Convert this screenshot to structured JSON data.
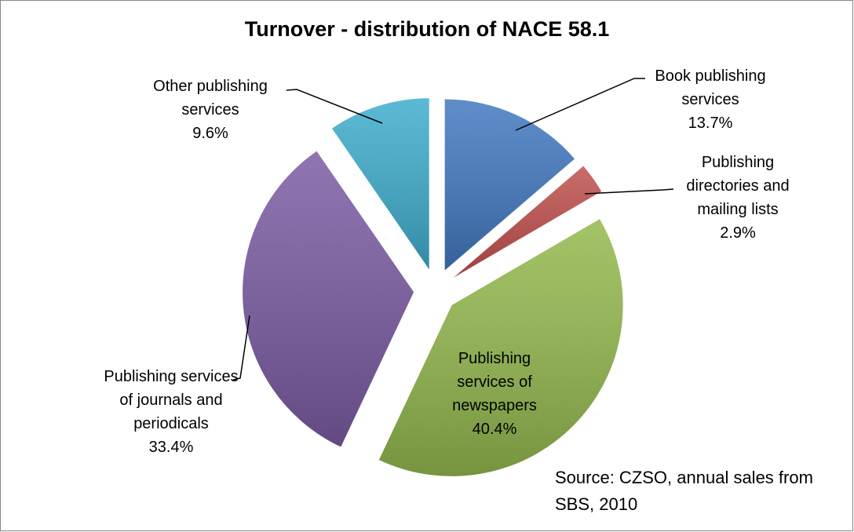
{
  "chart_data": {
    "type": "pie",
    "title": "Turnover - distribution of NACE 58.1",
    "categories": [
      "Book publishing services",
      "Publishing directories and mailing lists",
      "Publishing services of newspapers",
      "Publishing services of journals and periodicals",
      "Other publishing services"
    ],
    "values": [
      13.7,
      2.9,
      40.4,
      33.4,
      9.6
    ],
    "value_labels": [
      "13.7%",
      "2.9%",
      "40.4%",
      "33.4%",
      "9.6%"
    ],
    "colors": [
      "#4279c0",
      "#c0504d",
      "#94b94e",
      "#7b5ca3",
      "#3fadcc"
    ],
    "annotation": "Source: CZSO, annual sales from SBS, 2010"
  }
}
